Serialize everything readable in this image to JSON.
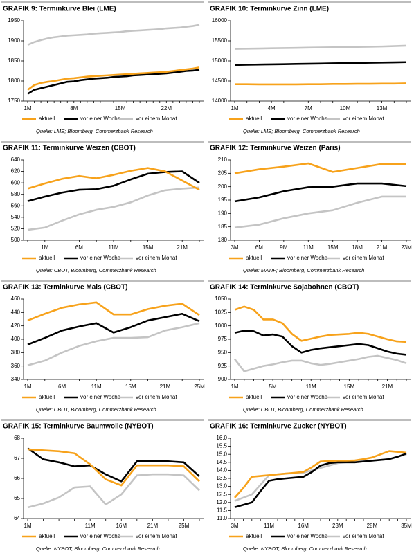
{
  "chart_data": [
    {
      "type": "line",
      "title": "GRAFIK 9: Terminkurve Blei (LME)",
      "source": "Quelle: LME; Bloomberg, Commerzbank Research",
      "categories": [
        "1M",
        null,
        null,
        null,
        null,
        null,
        null,
        "8M",
        null,
        null,
        null,
        null,
        null,
        null,
        "15M",
        null,
        null,
        null,
        null,
        null,
        null,
        "22M",
        null,
        null,
        null,
        null,
        null
      ],
      "ylim": [
        1750,
        1950
      ],
      "yticks": [
        1750,
        1800,
        1850,
        1900,
        1950
      ],
      "series": [
        {
          "name": "aktuell",
          "color": "#f7a21b",
          "values": [
            1778,
            1790,
            1795,
            1798,
            1800,
            1803,
            1806,
            1807,
            1809,
            1811,
            1812,
            1813,
            1814,
            1815,
            1816,
            1817,
            1818,
            1819,
            1820,
            1821,
            1822,
            1823,
            1825,
            1827,
            1829,
            1831,
            1834
          ]
        },
        {
          "name": "vor einer Woche",
          "color": "#000000",
          "values": [
            1768,
            1778,
            1782,
            1786,
            1790,
            1794,
            1798,
            1799,
            1802,
            1804,
            1806,
            1807,
            1808,
            1810,
            1811,
            1812,
            1814,
            1815,
            1816,
            1817,
            1818,
            1819,
            1821,
            1823,
            1825,
            1826,
            1828
          ]
        },
        {
          "name": "vor einem Monat",
          "color": "#c4c4c4",
          "values": [
            1890,
            1897,
            1902,
            1906,
            1909,
            1911,
            1913,
            1914,
            1915,
            1916,
            1918,
            1919,
            1920,
            1921,
            1922,
            1924,
            1925,
            1926,
            1927,
            1928,
            1929,
            1931,
            1932,
            1933,
            1935,
            1937,
            1940
          ]
        }
      ]
    },
    {
      "type": "line",
      "title": "GRAFIK 10: Terminkurve Zinn (LME)",
      "source": "Quelle: LME; Bloomberg, Commerzbank Research",
      "categories": [
        "1M",
        null,
        null,
        "4M",
        null,
        null,
        "7M",
        null,
        null,
        "10M",
        null,
        null,
        "13M",
        null,
        null
      ],
      "ylim": [
        14000,
        16000
      ],
      "yticks": [
        14000,
        14500,
        15000,
        15500,
        16000
      ],
      "series": [
        {
          "name": "aktuell",
          "color": "#f7a21b",
          "values": [
            14420,
            14420,
            14415,
            14415,
            14415,
            14415,
            14420,
            14420,
            14425,
            14425,
            14430,
            14430,
            14435,
            14435,
            14440
          ]
        },
        {
          "name": "vor einer Woche",
          "color": "#000000",
          "values": [
            14900,
            14905,
            14910,
            14915,
            14920,
            14925,
            14930,
            14935,
            14940,
            14945,
            14950,
            14955,
            14960,
            14965,
            14970
          ]
        },
        {
          "name": "vor einem Monat",
          "color": "#c4c4c4",
          "values": [
            15300,
            15305,
            15310,
            15315,
            15320,
            15325,
            15330,
            15335,
            15340,
            15345,
            15350,
            15355,
            15360,
            15370,
            15380
          ]
        }
      ]
    },
    {
      "type": "line",
      "title": "GRAFIK 11: Terminkurve Weizen (CBOT)",
      "source": "Quelle: CBOT; Bloomberg, Commerzbank Research",
      "categories": [
        null,
        "1M",
        null,
        "6M",
        null,
        "11M",
        null,
        "15M",
        null,
        "21M",
        null
      ],
      "ylim": [
        500,
        640
      ],
      "yticks": [
        500,
        520,
        540,
        560,
        580,
        600,
        620,
        640
      ],
      "series": [
        {
          "name": "aktuell",
          "color": "#f7a21b",
          "values": [
            590,
            599,
            607,
            612,
            608,
            614,
            621,
            626,
            620,
            604,
            588
          ]
        },
        {
          "name": "vor einer Woche",
          "color": "#000000",
          "values": [
            568,
            576,
            583,
            588,
            589,
            595,
            606,
            616,
            619,
            620,
            600
          ]
        },
        {
          "name": "vor einem Monat",
          "color": "#c4c4c4",
          "values": [
            518,
            522,
            534,
            545,
            553,
            558,
            566,
            578,
            587,
            590,
            592
          ]
        }
      ]
    },
    {
      "type": "line",
      "title": "GRAFIK 12: Terminkurve Weizen (Paris)",
      "source": "Quelle: MATIF; Bloomberg, Commerzbank Research",
      "categories": [
        "3M",
        "6M",
        "9M",
        "11M",
        "15M",
        "18M",
        "21M",
        "23M"
      ],
      "ylim": [
        180,
        210
      ],
      "yticks": [
        180,
        185,
        190,
        195,
        200,
        205,
        210
      ],
      "series": [
        {
          "name": "aktuell",
          "color": "#f7a21b",
          "values": [
            205,
            206.5,
            207.5,
            208.7,
            205.5,
            207,
            208.5,
            208.5
          ]
        },
        {
          "name": "vor einer Woche",
          "color": "#000000",
          "values": [
            194.5,
            196,
            198.3,
            199.8,
            200,
            201.2,
            201.2,
            200.2
          ]
        },
        {
          "name": "vor einem Monat",
          "color": "#c4c4c4",
          "values": [
            184.7,
            185.8,
            188.2,
            190,
            191.2,
            194,
            196.3,
            196.3
          ]
        }
      ]
    },
    {
      "type": "line",
      "title": "GRAFIK 13: Terminkurve Mais (CBOT)",
      "source": "Quelle: CBOT; Bloomberg, Commerzbank Research",
      "categories": [
        "1M",
        null,
        "6M",
        null,
        "11M",
        null,
        "15M",
        null,
        "21M",
        null,
        "25M"
      ],
      "ylim": [
        340,
        460
      ],
      "yticks": [
        340,
        360,
        380,
        400,
        420,
        440,
        460
      ],
      "series": [
        {
          "name": "aktuell",
          "color": "#f7a21b",
          "values": [
            428,
            438,
            447,
            452,
            455,
            437,
            437,
            445,
            450,
            453,
            436
          ]
        },
        {
          "name": "vor einer Woche",
          "color": "#000000",
          "values": [
            392,
            402,
            413,
            419,
            424,
            410,
            418,
            428,
            433,
            438,
            427
          ]
        },
        {
          "name": "vor einem Monat",
          "color": "#c4c4c4",
          "values": [
            361,
            368,
            380,
            390,
            397,
            402,
            402,
            403,
            413,
            418,
            424
          ]
        }
      ]
    },
    {
      "type": "line",
      "title": "GRAFIK 14: Terminkurve Sojabohnen (CBOT)",
      "source": "Quelle: CBOT; Bloomberg, Commerzbank Research",
      "categories": [
        "1M",
        null,
        null,
        null,
        "5M",
        null,
        null,
        null,
        "11M",
        null,
        null,
        null,
        "15M",
        null,
        null,
        null,
        "21M",
        null,
        null
      ],
      "ylim": [
        900,
        1050
      ],
      "yticks": [
        900,
        925,
        950,
        975,
        1000,
        1025,
        1050
      ],
      "series": [
        {
          "name": "aktuell",
          "color": "#f7a21b",
          "values": [
            1030,
            1036,
            1030,
            1012,
            1012,
            1005,
            985,
            972,
            976,
            980,
            983,
            984,
            985,
            987,
            985,
            980,
            975,
            971,
            970
          ]
        },
        {
          "name": "vor einer Woche",
          "color": "#000000",
          "values": [
            987,
            991,
            990,
            982,
            984,
            980,
            962,
            950,
            955,
            958,
            960,
            962,
            964,
            966,
            964,
            958,
            952,
            948,
            946
          ]
        },
        {
          "name": "vor einem Monat",
          "color": "#c4c4c4",
          "values": [
            938,
            915,
            920,
            925,
            928,
            932,
            935,
            935,
            930,
            927,
            929,
            932,
            935,
            938,
            942,
            944,
            940,
            936,
            930
          ]
        }
      ]
    },
    {
      "type": "line",
      "title": "GRAFIK 15: Terminkurve Baumwolle (NYBOT)",
      "source": "Quelle: NYBOT; Bloomberg, Commerzbank Research",
      "categories": [
        "1M",
        null,
        null,
        null,
        "11M",
        null,
        "16M",
        null,
        "21M",
        null,
        "25M",
        null
      ],
      "ylim": [
        64,
        68
      ],
      "yticks": [
        64,
        65,
        66,
        67,
        68
      ],
      "series": [
        {
          "name": "aktuell",
          "color": "#f7a21b",
          "values": [
            67.45,
            67.4,
            67.35,
            67.25,
            66.7,
            65.95,
            65.65,
            66.65,
            66.65,
            66.65,
            66.6,
            65.85
          ]
        },
        {
          "name": "vor einer Woche",
          "color": "#000000",
          "values": [
            67.5,
            66.95,
            66.8,
            66.6,
            66.65,
            66.2,
            65.85,
            66.85,
            66.85,
            66.85,
            66.8,
            66.1
          ]
        },
        {
          "name": "vor einem Monat",
          "color": "#c4c4c4",
          "values": [
            64.55,
            64.75,
            65.05,
            65.55,
            65.6,
            64.7,
            65.2,
            66.15,
            66.2,
            66.2,
            66.15,
            65.4
          ]
        }
      ]
    },
    {
      "type": "line",
      "title": "GRAFIK 16: Terminkurve Zucker (NYBOT)",
      "source": "Quelle: NYBOT; Bloomberg, Commerzbank Research",
      "categories": [
        "3M",
        null,
        null,
        null,
        "11M",
        null,
        null,
        null,
        "16M",
        null,
        null,
        null,
        "23M",
        null,
        null,
        null,
        "28M",
        null,
        null,
        null,
        "35M"
      ],
      "ylim": [
        11,
        16
      ],
      "yticks": [
        {
          "value": 11,
          "label": "11.0"
        },
        {
          "value": 11.5,
          "label": "11.5"
        },
        {
          "value": 12,
          "label": "12.0"
        },
        {
          "value": 12.5,
          "label": "12.5"
        },
        {
          "value": 13,
          "label": "13.0"
        },
        {
          "value": 13.5,
          "label": "13.5"
        },
        {
          "value": 14,
          "label": "14.0"
        },
        {
          "value": 14.5,
          "label": "14.5"
        },
        {
          "value": 15,
          "label": "15.0"
        },
        {
          "value": 15.5,
          "label": "15.5"
        },
        {
          "value": 16,
          "label": "16.0"
        }
      ],
      "series": [
        {
          "name": "aktuell",
          "color": "#f7a21b",
          "values": [
            12.3,
            12.9,
            13.6,
            13.65,
            13.7,
            13.75,
            13.8,
            13.85,
            13.9,
            14.2,
            14.55,
            14.58,
            14.6,
            14.6,
            14.62,
            14.7,
            14.8,
            15.0,
            15.2,
            15.15,
            15.1
          ]
        },
        {
          "name": "vor einer Woche",
          "color": "#000000",
          "values": [
            11.7,
            11.85,
            12.0,
            12.7,
            13.35,
            13.45,
            13.5,
            13.55,
            13.6,
            13.9,
            14.3,
            14.45,
            14.5,
            14.5,
            14.5,
            14.55,
            14.6,
            14.65,
            14.7,
            14.85,
            15.05
          ]
        },
        {
          "name": "vor einem Monat",
          "color": "#c4c4c4",
          "values": [
            12.1,
            12.3,
            12.5,
            13.1,
            13.7,
            13.75,
            13.8,
            13.82,
            13.85,
            14.0,
            14.15,
            14.3,
            14.45,
            14.5,
            14.5,
            14.6,
            14.6,
            14.65,
            14.7,
            14.85,
            15.0
          ]
        }
      ]
    }
  ]
}
